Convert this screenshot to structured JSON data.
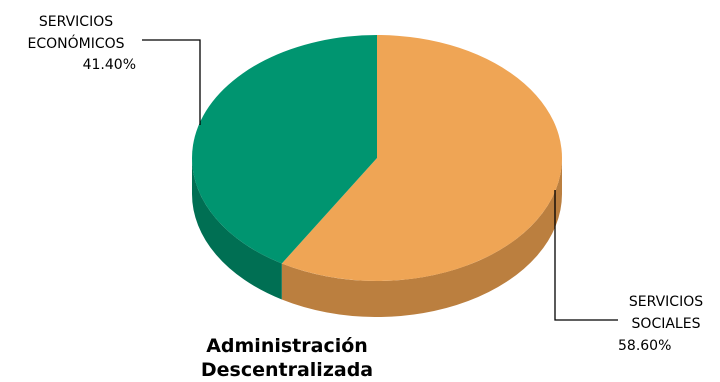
{
  "chart_data": {
    "type": "pie",
    "style": "3d",
    "title_lines": [
      "Administración",
      "Descentralizada"
    ],
    "slices": [
      {
        "label_lines": [
          "SERVICIOS",
          "SOCIALES"
        ],
        "value": 58.6,
        "value_label": "58.60%",
        "color": "#efa555",
        "side_color": "#bb7f3f"
      },
      {
        "label_lines": [
          "SERVICIOS",
          "ECONÓMICOS"
        ],
        "value": 41.4,
        "value_label": "41.40%",
        "color": "#009570",
        "side_color": "#006f53"
      }
    ]
  }
}
